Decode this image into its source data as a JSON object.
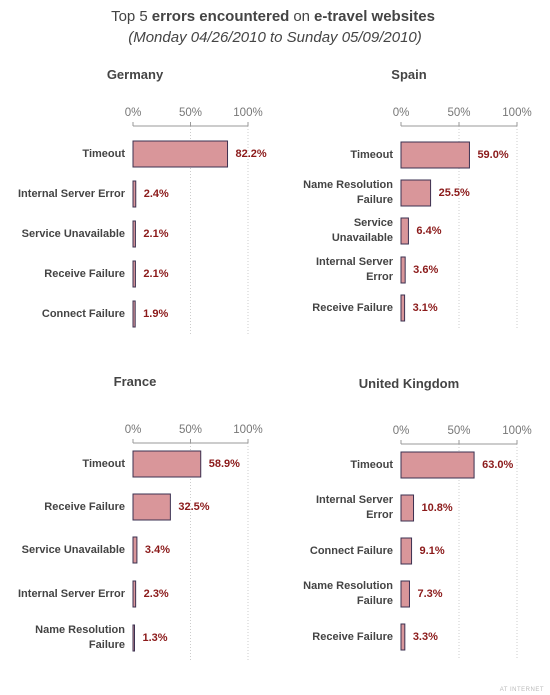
{
  "title": [
    {
      "text": "Top 5",
      "bold": false
    },
    {
      "text": "errors encountered",
      "bold": true
    },
    {
      "text": "on",
      "bold": false
    },
    {
      "text": "e-travel websites",
      "bold": true
    }
  ],
  "subtitle": "(Monday 04/26/2010 to Sunday 05/09/2010)",
  "logo": "AT INTERNET",
  "chart_data": [
    {
      "type": "bar",
      "orientation": "horizontal",
      "title": "Germany",
      "categories": [
        "Timeout",
        "Internal Server Error",
        "Service Unavailable",
        "Receive Failure",
        "Connect Failure"
      ],
      "values": [
        82.2,
        2.4,
        2.1,
        2.1,
        1.9
      ],
      "value_labels": [
        "82.2%",
        "2.4%",
        "2.1%",
        "2.1%",
        "1.9%"
      ],
      "color": "#d9969a",
      "xlim": [
        0,
        100
      ],
      "xticks": [
        {
          "value": 0,
          "label": "0%"
        },
        {
          "value": 50,
          "label": "50%"
        },
        {
          "value": 100,
          "label": "100%"
        }
      ],
      "grid": true
    },
    {
      "type": "bar",
      "orientation": "horizontal",
      "title": "Spain",
      "categories": [
        "Timeout",
        "Name Resolution Failure",
        "Service Unavailable",
        "Internal Server Error",
        "Receive Failure"
      ],
      "values": [
        59.0,
        25.5,
        6.4,
        3.6,
        3.1
      ],
      "value_labels": [
        "59.0%",
        "25.5%",
        "6.4%",
        "3.6%",
        "3.1%"
      ],
      "color": "#d9969a",
      "xlim": [
        0,
        100
      ],
      "xticks": [
        {
          "value": 0,
          "label": "0%"
        },
        {
          "value": 50,
          "label": "50%"
        },
        {
          "value": 100,
          "label": "100%"
        }
      ],
      "grid": true
    },
    {
      "type": "bar",
      "orientation": "horizontal",
      "title": "France",
      "categories": [
        "Timeout",
        "Receive Failure",
        "Service Unavailable",
        "Internal Server Error",
        "Name Resolution Failure"
      ],
      "values": [
        58.9,
        32.5,
        3.4,
        2.3,
        1.3
      ],
      "value_labels": [
        "58.9%",
        "32.5%",
        "3.4%",
        "2.3%",
        "1.3%"
      ],
      "color": "#d9969a",
      "xlim": [
        0,
        100
      ],
      "xticks": [
        {
          "value": 0,
          "label": "0%"
        },
        {
          "value": 50,
          "label": "50%"
        },
        {
          "value": 100,
          "label": "100%"
        }
      ],
      "grid": true
    },
    {
      "type": "bar",
      "orientation": "horizontal",
      "title": "United Kingdom",
      "categories": [
        "Timeout",
        "Internal Server Error",
        "Connect Failure",
        "Name Resolution Failure",
        "Receive Failure"
      ],
      "values": [
        63.0,
        10.8,
        9.1,
        7.3,
        3.3
      ],
      "value_labels": [
        "63.0%",
        "10.8%",
        "9.1%",
        "7.3%",
        "3.3%"
      ],
      "color": "#d9969a",
      "xlim": [
        0,
        100
      ],
      "xticks": [
        {
          "value": 0,
          "label": "0%"
        },
        {
          "value": 50,
          "label": "50%"
        },
        {
          "value": 100,
          "label": "100%"
        }
      ],
      "grid": true
    }
  ]
}
